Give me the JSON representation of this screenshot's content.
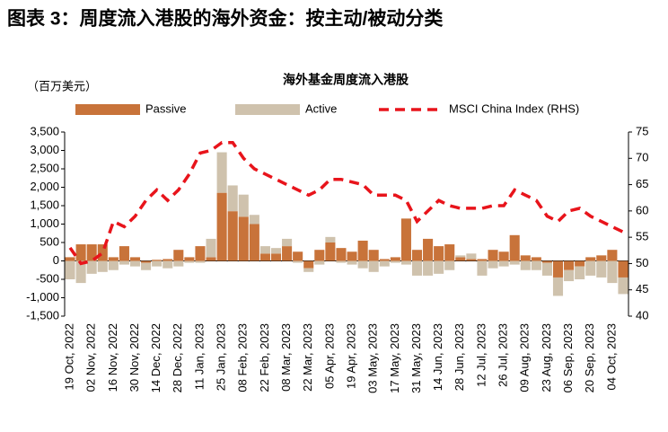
{
  "chart_data": {
    "type": "bar",
    "figure_title": "图表 3：周度流入港股的海外资金：按主动/被动分类",
    "title": "海外基金周度流入港股",
    "ylabel": "（百万美元）",
    "categories": [
      "19 Oct, 2022",
      null,
      "02 Nov, 2022",
      null,
      "16 Nov, 2022",
      null,
      "30 Nov, 2022",
      null,
      "14 Dec, 2022",
      null,
      "28 Dec, 2022",
      null,
      "11 Jan, 2023",
      null,
      "25 Jan, 2023",
      null,
      "08 Feb, 2023",
      null,
      "22 Feb, 2023",
      null,
      "08 Mar, 2023",
      null,
      "22 Mar, 2023",
      null,
      "05 Apr, 2023",
      null,
      "19 Apr, 2023",
      null,
      "03 May, 2023",
      null,
      "17 May, 2023",
      null,
      "31 May, 2023",
      null,
      "14 Jun, 2023",
      null,
      "28 Jun, 2023",
      null,
      "12 Jul, 2023",
      null,
      "26 Jul, 2023",
      null,
      "09 Aug, 2023",
      null,
      "23 Aug, 2023",
      null,
      "06 Sep, 2023",
      null,
      "20 Sep, 2023",
      null,
      "04 Oct, 2023",
      null
    ],
    "series": [
      {
        "name": "Passive",
        "color": "#c8733a",
        "values": [
          100,
          450,
          450,
          450,
          100,
          400,
          100,
          -50,
          30,
          50,
          300,
          100,
          400,
          100,
          1850,
          1350,
          1200,
          1000,
          200,
          200,
          400,
          250,
          -200,
          300,
          500,
          350,
          250,
          550,
          300,
          50,
          100,
          1150,
          300,
          600,
          400,
          450,
          100,
          50,
          50,
          300,
          250,
          700,
          150,
          100,
          -50,
          -450,
          -250,
          -150,
          100,
          150,
          300,
          -450
        ]
      },
      {
        "name": "Active",
        "color": "#cfc2ad",
        "values": [
          -500,
          -600,
          -350,
          -300,
          -250,
          -100,
          -150,
          -200,
          -150,
          -200,
          -150,
          -50,
          -50,
          500,
          1100,
          700,
          600,
          250,
          200,
          150,
          200,
          -50,
          -100,
          -100,
          150,
          -50,
          -100,
          -200,
          -300,
          -150,
          -50,
          -100,
          -400,
          -400,
          -350,
          -250,
          50,
          150,
          -400,
          -200,
          -150,
          -100,
          -250,
          -250,
          -350,
          -500,
          -300,
          -350,
          -400,
          -450,
          -600,
          -450
        ]
      },
      {
        "name": "MSCI China Index (RHS)",
        "color": "#e8141b",
        "type": "line",
        "axis": "y2",
        "values": [
          53,
          50,
          50.5,
          52,
          58,
          57,
          59,
          62,
          64,
          62,
          64,
          67,
          71,
          71.5,
          73,
          73,
          70,
          68,
          67,
          66,
          65,
          64,
          63,
          64,
          66,
          66,
          65.5,
          65,
          63,
          63,
          63,
          62,
          58,
          60,
          62,
          61,
          60.5,
          60.5,
          60.5,
          61,
          61,
          64,
          63,
          62,
          59,
          58,
          60,
          60.5,
          59,
          58,
          57,
          56
        ]
      }
    ],
    "ylim": [
      -1500,
      3500
    ],
    "yticks": [
      {
        "value": -1500,
        "label": "-1,500"
      },
      {
        "value": -1000,
        "label": "-1,000"
      },
      -500,
      0,
      500,
      {
        "value": 1000,
        "label": "1,000"
      },
      {
        "value": 1500,
        "label": "1,500"
      },
      {
        "value": 2000,
        "label": "2,000"
      },
      {
        "value": 2500,
        "label": "2,500"
      },
      {
        "value": 3000,
        "label": "3,000"
      },
      {
        "value": 3500,
        "label": "3,500"
      }
    ],
    "negative_tick_color": "#e8141b",
    "y2lim": [
      40,
      75
    ],
    "y2ticks": [
      40,
      45,
      50,
      55,
      60,
      65,
      70,
      75
    ],
    "grid": false,
    "legend": "top"
  }
}
